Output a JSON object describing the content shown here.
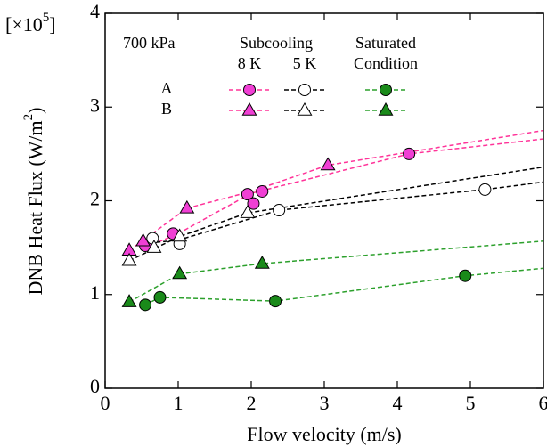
{
  "chart_data": {
    "type": "scatter",
    "xlabel": "Flow velocity (m/s)",
    "ylabel": {
      "text": "DNB Heat Flux (W/m",
      "sup": "2",
      "close": ")"
    },
    "multiplier": {
      "text": "[×10",
      "sup": "5",
      "close": "]"
    },
    "xlim": [
      0,
      6
    ],
    "xticks": [
      0,
      1,
      2,
      3,
      4,
      5,
      6
    ],
    "ylim": [
      0,
      4
    ],
    "yticks": [
      0,
      1,
      2,
      3,
      4
    ],
    "legend": {
      "pressure": "700 kPa",
      "heading1": "Subcooling",
      "heading2": "Saturated",
      "heading3": "Condition",
      "col8": "8 K",
      "col5": "5 K",
      "rows": [
        "A",
        "B"
      ]
    },
    "series": [
      {
        "marker": "circle",
        "fill": "#f03fd4",
        "color": "#ff3399",
        "x": [
          0.55,
          0.93,
          1.95,
          2.03,
          2.15,
          4.16
        ],
        "values": [
          1.52,
          1.65,
          2.07,
          1.97,
          2.1,
          2.5
        ],
        "fit": {
          "x": [
            0.55,
            1,
            2,
            4.16,
            6
          ],
          "values": [
            1.5,
            1.65,
            2.08,
            2.5,
            2.66
          ]
        }
      },
      {
        "marker": "triangle",
        "fill": "#f03fd4",
        "color": "#ff3399",
        "x": [
          0.33,
          0.52,
          1.12,
          3.05
        ],
        "values": [
          1.47,
          1.57,
          1.92,
          2.38
        ],
        "fit": {
          "x": [
            0.33,
            1.12,
            2,
            3.05,
            6
          ],
          "values": [
            1.47,
            1.92,
            2.1,
            2.38,
            2.75
          ]
        }
      },
      {
        "marker": "circle",
        "fill": "#ffffff",
        "color": "#000000",
        "x": [
          0.65,
          1.02,
          2.38,
          5.2
        ],
        "values": [
          1.6,
          1.54,
          1.9,
          2.12
        ],
        "fit": {
          "x": [
            0.6,
            1,
            2.38,
            5.2,
            6
          ],
          "values": [
            1.55,
            1.58,
            1.9,
            2.12,
            2.2
          ]
        }
      },
      {
        "marker": "triangle",
        "fill": "#ffffff",
        "color": "#000000",
        "x": [
          0.33,
          0.67,
          1.02,
          1.95
        ],
        "values": [
          1.36,
          1.5,
          1.62,
          1.87
        ],
        "fit": {
          "x": [
            0.33,
            1.02,
            1.95,
            6
          ],
          "values": [
            1.36,
            1.62,
            1.87,
            2.36
          ]
        }
      },
      {
        "marker": "circle",
        "fill": "#1a8a1a",
        "color": "#2ca02c",
        "x": [
          0.55,
          0.75,
          2.33,
          4.93
        ],
        "values": [
          0.89,
          0.97,
          0.93,
          1.2
        ],
        "fit": {
          "x": [
            0.55,
            0.75,
            2.33,
            4.93,
            6
          ],
          "values": [
            0.89,
            0.97,
            0.93,
            1.2,
            1.28
          ]
        }
      },
      {
        "marker": "triangle",
        "fill": "#1a8a1a",
        "color": "#2ca02c",
        "x": [
          0.33,
          1.02,
          2.15
        ],
        "values": [
          0.92,
          1.22,
          1.33
        ],
        "fit": {
          "x": [
            0.33,
            1.02,
            2.15,
            6
          ],
          "values": [
            0.92,
            1.22,
            1.33,
            1.57
          ]
        }
      }
    ]
  }
}
